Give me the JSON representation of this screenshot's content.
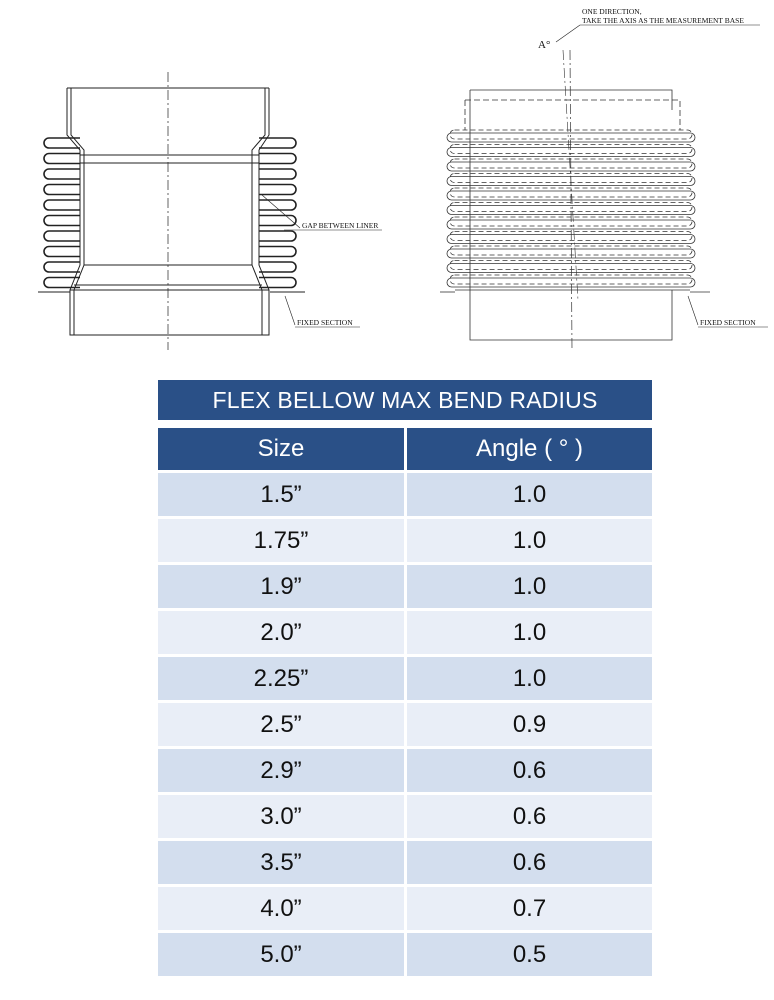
{
  "drawings": {
    "left": {
      "label_gap": "GAP BETWEEN LINER",
      "label_fixed": "FIXED SECTION"
    },
    "right": {
      "label_direction_1": "ONE DIRECTION,",
      "label_direction_2": "TAKE THE AXIS AS THE MEASUREMENT BASE",
      "label_angle": "A°",
      "label_fixed": "FIXED SECTION"
    }
  },
  "table": {
    "title": "FLEX BELLOW MAX BEND RADIUS",
    "header_color": "#2a5087",
    "columns": [
      "Size",
      "Angle (  ° )"
    ],
    "rows": [
      [
        "1.5”",
        "1.0"
      ],
      [
        "1.75”",
        "1.0"
      ],
      [
        "1.9”",
        "1.0"
      ],
      [
        "2.0”",
        "1.0"
      ],
      [
        "2.25”",
        "1.0"
      ],
      [
        "2.5”",
        "0.9"
      ],
      [
        "2.9”",
        "0.6"
      ],
      [
        "3.0”",
        "0.6"
      ],
      [
        "3.5”",
        "0.6"
      ],
      [
        "4.0”",
        "0.7"
      ],
      [
        "5.0”",
        "0.5"
      ]
    ]
  }
}
